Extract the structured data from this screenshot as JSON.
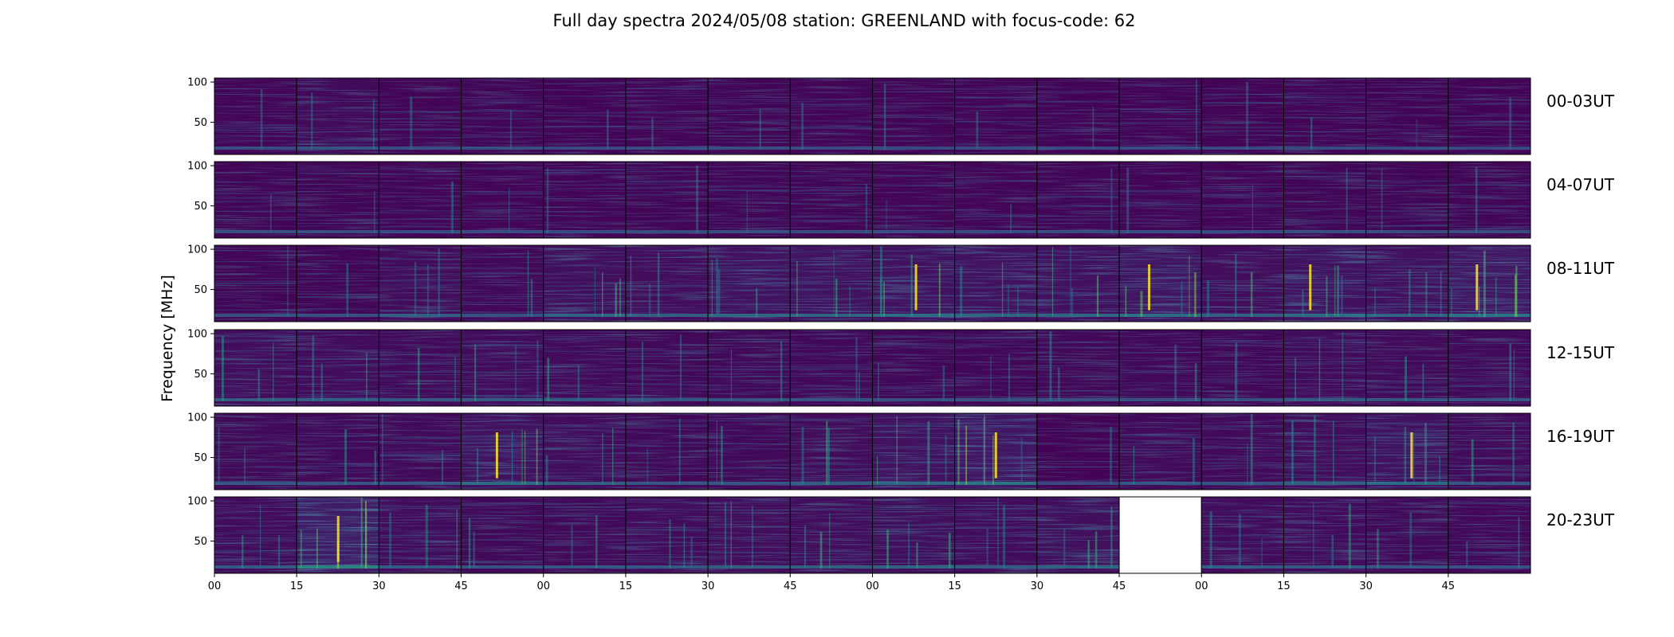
{
  "chart_data": {
    "type": "heatmap",
    "title": "Full day spectra 2024/05/08 station: GREENLAND with focus-code: 62",
    "ylabel": "Frequency [MHz]",
    "xlabel": "",
    "ylim": [
      10,
      105
    ],
    "y_ticks": [
      "100",
      "50"
    ],
    "x_ticks": [
      "00",
      "15",
      "30",
      "45",
      "00",
      "15",
      "30",
      "45",
      "00",
      "15",
      "30",
      "45",
      "00",
      "15",
      "30",
      "45"
    ],
    "colormap": "viridis",
    "colors": {
      "low": "#440154",
      "mid": "#21918c",
      "high": "#fde725",
      "empty": "#ffffff"
    },
    "rows": [
      {
        "label": "00-03UT",
        "activity": [
          0.1,
          0.22,
          0.1,
          0.13,
          0.09,
          0.1,
          0.12,
          0.1,
          0.09,
          0.1,
          0.09,
          0.11,
          0.09,
          0.11,
          0.09,
          0.09
        ]
      },
      {
        "label": "04-07UT",
        "activity": [
          0.13,
          0.12,
          0.11,
          0.1,
          0.11,
          0.12,
          0.12,
          0.12,
          0.1,
          0.11,
          0.12,
          0.1,
          0.1,
          0.13,
          0.12,
          0.13
        ]
      },
      {
        "label": "08-11UT",
        "activity": [
          0.12,
          0.13,
          0.28,
          0.18,
          0.35,
          0.3,
          0.4,
          0.4,
          0.45,
          0.4,
          0.38,
          0.5,
          0.3,
          0.45,
          0.38,
          0.55
        ]
      },
      {
        "label": "12-15UT",
        "activity": [
          0.3,
          0.25,
          0.22,
          0.25,
          0.22,
          0.2,
          0.2,
          0.18,
          0.16,
          0.15,
          0.17,
          0.18,
          0.15,
          0.25,
          0.22,
          0.2
        ]
      },
      {
        "label": "16-19UT",
        "activity": [
          0.2,
          0.2,
          0.22,
          0.45,
          0.3,
          0.2,
          0.2,
          0.28,
          0.4,
          0.55,
          0.05,
          0.22,
          0.22,
          0.3,
          0.45,
          0.22
        ]
      },
      {
        "label": "20-23UT",
        "activity": [
          0.25,
          0.7,
          0.25,
          0.2,
          0.2,
          0.25,
          0.3,
          0.3,
          0.35,
          0.25,
          0.35,
          null,
          0.25,
          0.25,
          0.2,
          0.18
        ]
      }
    ],
    "missing_panel": {
      "row": 5,
      "column": 11
    },
    "grid": false,
    "legend": "none"
  }
}
